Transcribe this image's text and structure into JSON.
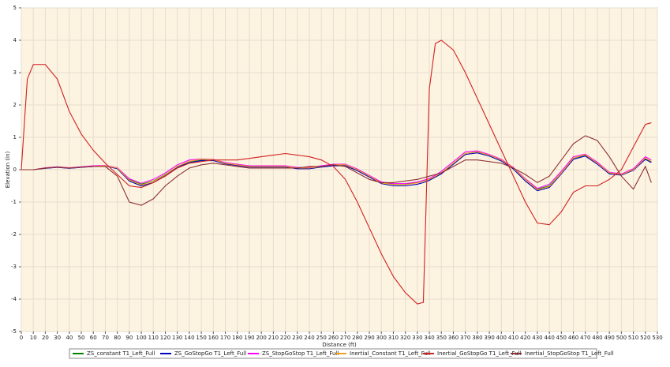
{
  "chart_data": {
    "type": "line",
    "xlabel": "Distance (ft)",
    "ylabel": "Elevation (in)",
    "x": [
      0,
      5,
      10,
      20,
      30,
      40,
      50,
      60,
      70,
      80,
      90,
      100,
      110,
      120,
      130,
      140,
      150,
      160,
      170,
      180,
      190,
      200,
      210,
      220,
      230,
      240,
      250,
      260,
      270,
      280,
      290,
      300,
      310,
      320,
      330,
      335,
      340,
      345,
      350,
      360,
      370,
      380,
      390,
      400,
      410,
      420,
      430,
      440,
      450,
      460,
      470,
      480,
      490,
      500,
      510,
      520,
      525
    ],
    "series": [
      {
        "name": "ZS_constant T1_Left_Full",
        "color": "#008000",
        "values": [
          0,
          0,
          0,
          0.05,
          0.08,
          0.05,
          0.08,
          0.1,
          0.12,
          0.05,
          -0.3,
          -0.45,
          -0.35,
          -0.15,
          0.1,
          0.25,
          0.3,
          0.3,
          0.2,
          0.15,
          0.1,
          0.1,
          0.1,
          0.1,
          0.05,
          0.05,
          0.1,
          0.15,
          0.15,
          0,
          -0.2,
          -0.4,
          -0.45,
          -0.45,
          -0.4,
          -0.35,
          -0.3,
          -0.2,
          -0.1,
          0.2,
          0.5,
          0.55,
          0.45,
          0.3,
          0.05,
          -0.3,
          -0.6,
          -0.5,
          -0.1,
          0.35,
          0.45,
          0.2,
          -0.1,
          -0.15,
          0,
          0.35,
          0.25
        ]
      },
      {
        "name": "ZS_GoStopGo T1_Left_Full",
        "color": "#0000c0",
        "values": [
          0,
          0,
          0,
          0.04,
          0.07,
          0.04,
          0.07,
          0.1,
          0.11,
          0.03,
          -0.35,
          -0.5,
          -0.4,
          -0.18,
          0.08,
          0.22,
          0.28,
          0.28,
          0.18,
          0.13,
          0.08,
          0.08,
          0.08,
          0.08,
          0.03,
          0.03,
          0.08,
          0.12,
          0.12,
          -0.03,
          -0.23,
          -0.43,
          -0.5,
          -0.5,
          -0.45,
          -0.4,
          -0.33,
          -0.23,
          -0.13,
          0.17,
          0.47,
          0.52,
          0.42,
          0.27,
          0.02,
          -0.35,
          -0.65,
          -0.55,
          -0.13,
          0.32,
          0.42,
          0.17,
          -0.13,
          -0.17,
          -0.02,
          0.32,
          0.22
        ]
      },
      {
        "name": "ZS_StopGoStop T1_Left_Full",
        "color": "#ff00ff",
        "values": [
          0,
          0,
          0,
          0.06,
          0.09,
          0.06,
          0.09,
          0.12,
          0.13,
          0.06,
          -0.28,
          -0.42,
          -0.3,
          -0.1,
          0.15,
          0.3,
          0.33,
          0.32,
          0.22,
          0.17,
          0.12,
          0.12,
          0.12,
          0.12,
          0.07,
          0.07,
          0.12,
          0.17,
          0.17,
          0.02,
          -0.18,
          -0.38,
          -0.43,
          -0.43,
          -0.38,
          -0.33,
          -0.27,
          -0.17,
          -0.05,
          0.25,
          0.55,
          0.58,
          0.47,
          0.32,
          0.07,
          -0.28,
          -0.58,
          -0.45,
          -0.05,
          0.4,
          0.48,
          0.23,
          -0.08,
          -0.13,
          0.03,
          0.4,
          0.3
        ]
      },
      {
        "name": "Inertial_Constant T1_Left_Full",
        "color": "#f0a020",
        "values": [
          0,
          0,
          0,
          0.05,
          0.08,
          0.05,
          0.08,
          0.1,
          0.12,
          0.05,
          -0.32,
          -0.47,
          -0.36,
          -0.16,
          0.1,
          0.26,
          0.32,
          0.31,
          0.2,
          0.15,
          0.1,
          0.1,
          0.1,
          0.1,
          0.05,
          0.05,
          0.1,
          0.15,
          0.15,
          0,
          -0.2,
          -0.41,
          -0.46,
          -0.46,
          -0.41,
          -0.36,
          -0.3,
          -0.2,
          -0.1,
          0.2,
          0.5,
          0.55,
          0.45,
          0.3,
          0.05,
          -0.3,
          -0.62,
          -0.52,
          -0.1,
          0.36,
          0.46,
          0.2,
          -0.1,
          -0.15,
          0,
          0.36,
          0.26
        ]
      },
      {
        "name": "Inertial_GoStopGo T1_Left_Full",
        "color": "#d02020",
        "values": [
          0,
          2.8,
          3.25,
          3.25,
          2.8,
          1.8,
          1.1,
          0.6,
          0.2,
          -0.15,
          -0.5,
          -0.55,
          -0.4,
          -0.2,
          0.05,
          0.2,
          0.25,
          0.3,
          0.3,
          0.3,
          0.35,
          0.4,
          0.45,
          0.5,
          0.45,
          0.4,
          0.3,
          0.1,
          -0.3,
          -1.0,
          -1.8,
          -2.6,
          -3.3,
          -3.8,
          -4.15,
          -4.1,
          2.5,
          3.9,
          4.0,
          3.7,
          3.0,
          2.2,
          1.4,
          0.6,
          -0.2,
          -1.0,
          -1.65,
          -1.7,
          -1.3,
          -0.7,
          -0.5,
          -0.5,
          -0.3,
          0,
          0.7,
          1.4,
          1.45
        ]
      },
      {
        "name": "Inertial_StopGoStop T1_Left_Full",
        "color": "#8b3030",
        "values": [
          0,
          0,
          0,
          0.05,
          0.08,
          0.05,
          0.08,
          0.1,
          0.1,
          -0.2,
          -1.0,
          -1.1,
          -0.9,
          -0.5,
          -0.2,
          0.05,
          0.15,
          0.2,
          0.15,
          0.1,
          0.05,
          0.05,
          0.05,
          0.05,
          0.05,
          0.1,
          0.1,
          0.15,
          0.1,
          -0.1,
          -0.3,
          -0.4,
          -0.4,
          -0.35,
          -0.3,
          -0.25,
          -0.2,
          -0.15,
          -0.1,
          0.1,
          0.3,
          0.3,
          0.25,
          0.2,
          0.05,
          -0.15,
          -0.4,
          -0.2,
          0.3,
          0.8,
          1.05,
          0.9,
          0.4,
          -0.2,
          -0.6,
          0.1,
          -0.4
        ]
      }
    ],
    "xlim": [
      0,
      530
    ],
    "xticks": [
      0,
      10,
      20,
      30,
      40,
      50,
      60,
      70,
      80,
      90,
      100,
      110,
      120,
      130,
      140,
      150,
      160,
      170,
      180,
      190,
      200,
      210,
      220,
      230,
      240,
      250,
      260,
      270,
      280,
      290,
      300,
      310,
      320,
      330,
      340,
      350,
      360,
      370,
      380,
      390,
      400,
      410,
      420,
      430,
      440,
      450,
      460,
      470,
      480,
      490,
      500,
      510,
      520,
      530
    ],
    "ylim": [
      -5,
      5
    ],
    "yticks": [
      -5,
      -4,
      -3,
      -2,
      -1,
      0,
      1,
      2,
      3,
      4,
      5
    ],
    "grid": true,
    "legend": "bottom"
  }
}
